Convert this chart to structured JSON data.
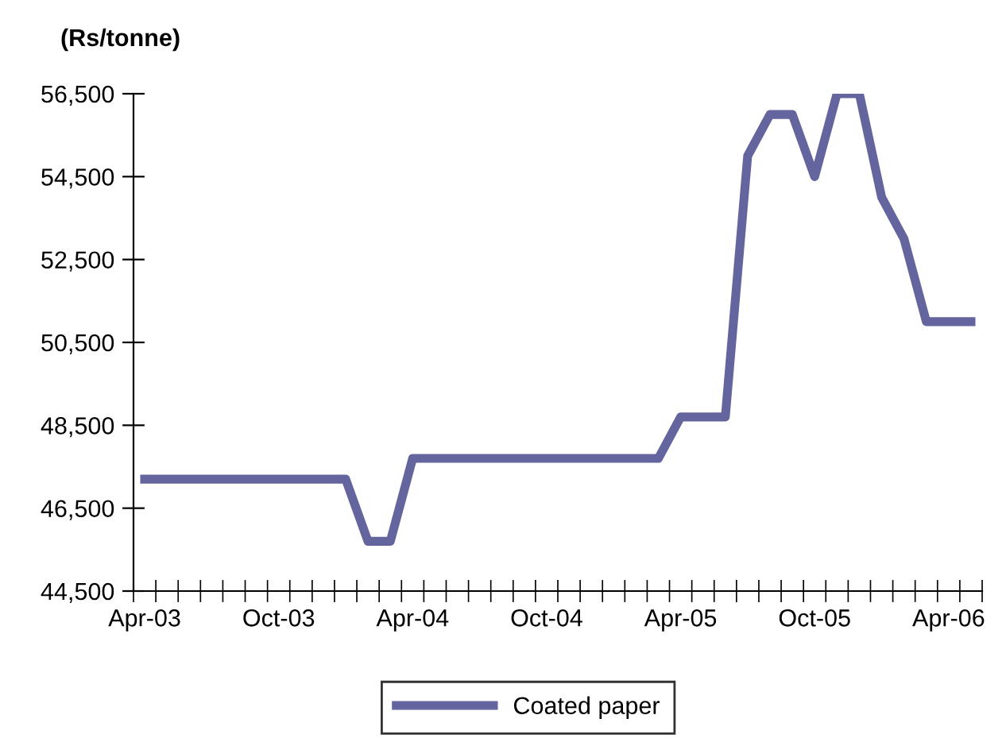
{
  "chart_data": {
    "type": "line",
    "ylabel": "(Rs/tonne)",
    "categories": [
      "Apr-03",
      null,
      null,
      null,
      null,
      null,
      "Oct-03",
      null,
      null,
      null,
      null,
      null,
      "Apr-04",
      null,
      null,
      null,
      null,
      null,
      "Oct-04",
      null,
      null,
      null,
      null,
      null,
      "Apr-05",
      null,
      null,
      null,
      null,
      null,
      "Oct-05",
      null,
      null,
      null,
      null,
      null,
      "Apr-06",
      null
    ],
    "series": [
      {
        "name": "Coated paper",
        "color": "#64649e",
        "values": [
          47200,
          47200,
          47200,
          47200,
          47200,
          47200,
          47200,
          47200,
          47200,
          47200,
          45700,
          45700,
          47700,
          47700,
          47700,
          47700,
          47700,
          47700,
          47700,
          47700,
          47700,
          47700,
          47700,
          47700,
          48700,
          48700,
          48700,
          55000,
          56000,
          56000,
          54500,
          56500,
          56500,
          54000,
          53000,
          51000,
          51000,
          51000
        ]
      }
    ],
    "ylim": [
      44500,
      56500
    ],
    "yticks": [
      {
        "value": 44500,
        "label": "44,500"
      },
      {
        "value": 46500,
        "label": "46,500"
      },
      {
        "value": 48500,
        "label": "48,500"
      },
      {
        "value": 50500,
        "label": "50,500"
      },
      {
        "value": 52500,
        "label": "52,500"
      },
      {
        "value": 54500,
        "label": "54,500"
      },
      {
        "value": 56500,
        "label": "56,500"
      }
    ],
    "grid": false,
    "legend": "bottom",
    "marker": "none",
    "line_style": "solid"
  }
}
